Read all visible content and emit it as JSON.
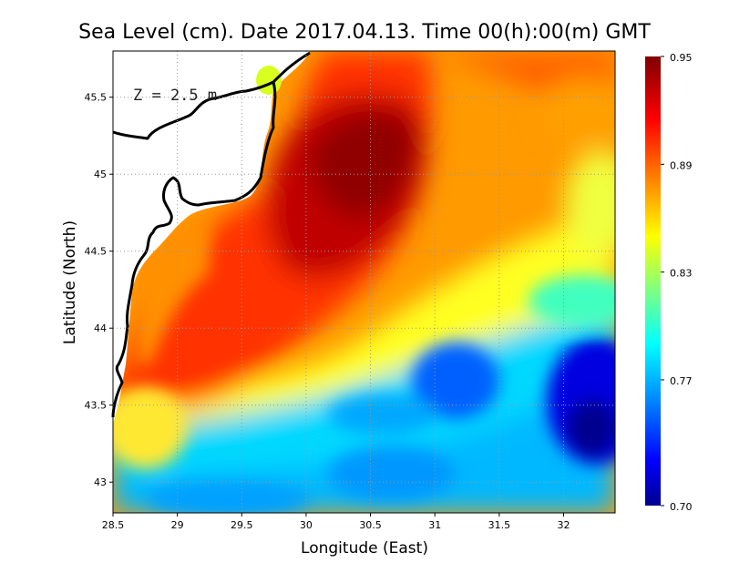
{
  "title": "Sea Level (cm). Date 2017.04.13. Time 00(h):00(m) GMT",
  "depth_label": "Z = 2.5 m",
  "chart_data": {
    "type": "heatmap",
    "title": "Sea Level (cm). Date 2017.04.13. Time 00(h):00(m) GMT",
    "xlabel": "Longitude (East)",
    "ylabel": "Latitude (North)",
    "xlim": [
      28.5,
      32.4
    ],
    "ylim": [
      42.8,
      45.8
    ],
    "x_ticks": [
      "28.5",
      "29",
      "29.5",
      "30",
      "30.5",
      "31",
      "31.5",
      "32"
    ],
    "y_ticks": [
      "43",
      "43.5",
      "44",
      "44.5",
      "45",
      "45.5"
    ],
    "grid": true,
    "colorbar": {
      "range": [
        0.7,
        0.95
      ],
      "tick_labels": [
        "0.95",
        "0.89",
        "0.83",
        "0.77",
        "0.70"
      ],
      "colors": [
        "#00008f",
        "#0000ff",
        "#00a0ff",
        "#00ffff",
        "#80ff80",
        "#ffff00",
        "#ff8000",
        "#ff0000",
        "#800000"
      ]
    },
    "features": [
      {
        "name": "high",
        "lon": 30.35,
        "lat": 45.1,
        "value": 0.95
      },
      {
        "name": "high",
        "lon": 30.6,
        "lat": 45.3,
        "value": 0.95
      },
      {
        "name": "low",
        "lon": 31.1,
        "lat": 43.6,
        "value": 0.78
      },
      {
        "name": "low",
        "lon": 32.15,
        "lat": 43.4,
        "value": 0.72
      }
    ]
  }
}
